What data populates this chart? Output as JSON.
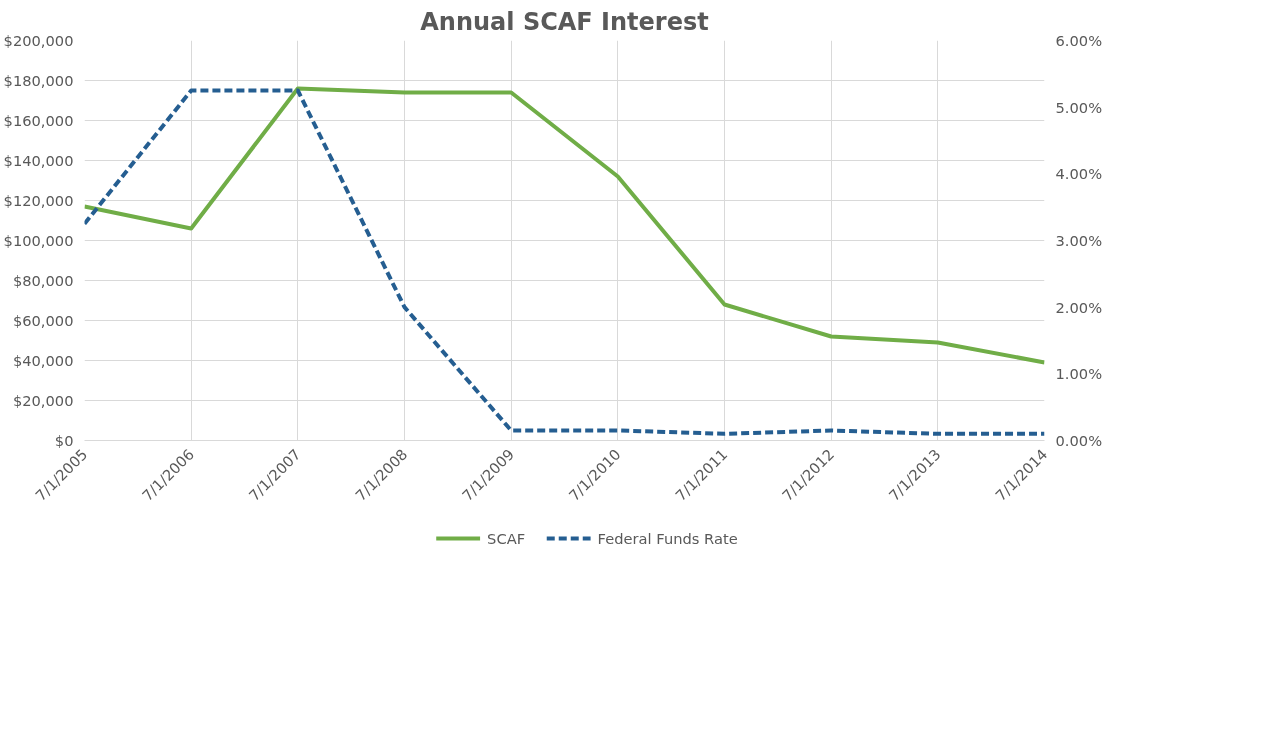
{
  "chart_data": {
    "type": "line",
    "title": "Annual SCAF Interest",
    "categories": [
      "7/1/2005",
      "7/1/2006",
      "7/1/2007",
      "7/1/2008",
      "7/1/2009",
      "7/1/2010",
      "7/1/2011",
      "7/1/2012",
      "7/1/2013",
      "7/1/2014"
    ],
    "series": [
      {
        "name": "SCAF",
        "color": "#70ad47",
        "line_style": "solid",
        "values": [
          117000,
          106000,
          176000,
          174000,
          174000,
          132000,
          68000,
          52000,
          49000,
          39000
        ]
      },
      {
        "name": "Federal Funds Rate",
        "color": "#255e91",
        "line_style": "dashed",
        "axis": "y2",
        "values": [
          3.25,
          5.25,
          5.25,
          2.0,
          0.15,
          0.15,
          0.1,
          0.15,
          0.1,
          0.1
        ]
      }
    ],
    "ylim": [
      0,
      200000
    ],
    "yticks": [
      {
        "value": 0,
        "label": "$0"
      },
      {
        "value": 20000,
        "label": "$20,000"
      },
      {
        "value": 40000,
        "label": "$40,000"
      },
      {
        "value": 60000,
        "label": "$60,000"
      },
      {
        "value": 80000,
        "label": "$80,000"
      },
      {
        "value": 100000,
        "label": "$100,000"
      },
      {
        "value": 120000,
        "label": "$120,000"
      },
      {
        "value": 140000,
        "label": "$140,000"
      },
      {
        "value": 160000,
        "label": "$160,000"
      },
      {
        "value": 180000,
        "label": "$180,000"
      },
      {
        "value": 200000,
        "label": "$200,000"
      }
    ],
    "y2lim": [
      0,
      6
    ],
    "y2ticks": [
      {
        "value": 0,
        "label": "0.00%"
      },
      {
        "value": 1,
        "label": "1.00%"
      },
      {
        "value": 2,
        "label": "2.00%"
      },
      {
        "value": 3,
        "label": "3.00%"
      },
      {
        "value": 4,
        "label": "4.00%"
      },
      {
        "value": 5,
        "label": "5.00%"
      },
      {
        "value": 6,
        "label": "6.00%"
      }
    ],
    "grid": true,
    "legend": "bottom",
    "marker": "none"
  }
}
